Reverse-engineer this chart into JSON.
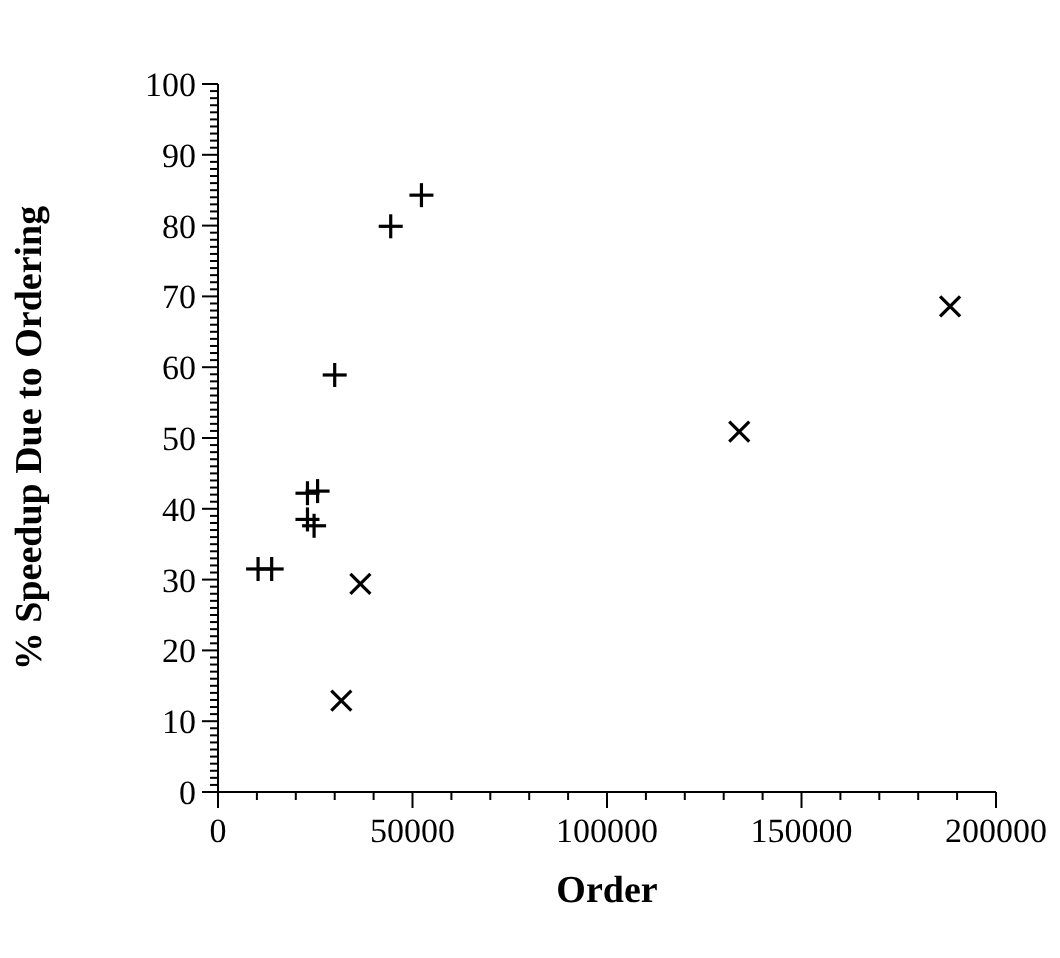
{
  "chart_data": {
    "type": "scatter",
    "xlabel": "Order",
    "ylabel": "% Speedup Due to Ordering",
    "series": [
      {
        "color": "#000000",
        "marker": "plus",
        "x": [
          10300,
          13800,
          23000,
          25600,
          23000,
          24700,
          30000,
          44400,
          52300
        ],
        "values": [
          31.5,
          31.5,
          42.2,
          42.5,
          38.5,
          37.6,
          58.9,
          79.9,
          84.3
        ]
      },
      {
        "color": "#000000",
        "marker": "cross",
        "x": [
          36600,
          31700,
          134000,
          188200
        ],
        "values": [
          29.4,
          12.9,
          50.9,
          68.6
        ]
      }
    ],
    "xlim": [
      0,
      200000
    ],
    "xticks": [
      0,
      {
        "value": 10000,
        "label": null
      },
      {
        "value": 20000,
        "label": null
      },
      {
        "value": 30000,
        "label": null
      },
      {
        "value": 40000,
        "label": null
      },
      50000,
      {
        "value": 60000,
        "label": null
      },
      {
        "value": 70000,
        "label": null
      },
      {
        "value": 80000,
        "label": null
      },
      {
        "value": 90000,
        "label": null
      },
      100000,
      {
        "value": 110000,
        "label": null
      },
      {
        "value": 120000,
        "label": null
      },
      {
        "value": 130000,
        "label": null
      },
      {
        "value": 140000,
        "label": null
      },
      150000,
      {
        "value": 160000,
        "label": null
      },
      {
        "value": 170000,
        "label": null
      },
      {
        "value": 180000,
        "label": null
      },
      {
        "value": 190000,
        "label": null
      },
      200000
    ],
    "ylim": [
      0,
      100
    ],
    "yticks": [
      0,
      {
        "value": 1,
        "label": null
      },
      {
        "value": 2,
        "label": null
      },
      {
        "value": 3,
        "label": null
      },
      {
        "value": 4,
        "label": null
      },
      {
        "value": 5,
        "label": null
      },
      {
        "value": 6,
        "label": null
      },
      {
        "value": 7,
        "label": null
      },
      {
        "value": 8,
        "label": null
      },
      {
        "value": 9,
        "label": null
      },
      10,
      {
        "value": 11,
        "label": null
      },
      {
        "value": 12,
        "label": null
      },
      {
        "value": 13,
        "label": null
      },
      {
        "value": 14,
        "label": null
      },
      {
        "value": 15,
        "label": null
      },
      {
        "value": 16,
        "label": null
      },
      {
        "value": 17,
        "label": null
      },
      {
        "value": 18,
        "label": null
      },
      {
        "value": 19,
        "label": null
      },
      20,
      {
        "value": 21,
        "label": null
      },
      {
        "value": 22,
        "label": null
      },
      {
        "value": 23,
        "label": null
      },
      {
        "value": 24,
        "label": null
      },
      {
        "value": 25,
        "label": null
      },
      {
        "value": 26,
        "label": null
      },
      {
        "value": 27,
        "label": null
      },
      {
        "value": 28,
        "label": null
      },
      {
        "value": 29,
        "label": null
      },
      30,
      {
        "value": 31,
        "label": null
      },
      {
        "value": 32,
        "label": null
      },
      {
        "value": 33,
        "label": null
      },
      {
        "value": 34,
        "label": null
      },
      {
        "value": 35,
        "label": null
      },
      {
        "value": 36,
        "label": null
      },
      {
        "value": 37,
        "label": null
      },
      {
        "value": 38,
        "label": null
      },
      {
        "value": 39,
        "label": null
      },
      40,
      {
        "value": 41,
        "label": null
      },
      {
        "value": 42,
        "label": null
      },
      {
        "value": 43,
        "label": null
      },
      {
        "value": 44,
        "label": null
      },
      {
        "value": 45,
        "label": null
      },
      {
        "value": 46,
        "label": null
      },
      {
        "value": 47,
        "label": null
      },
      {
        "value": 48,
        "label": null
      },
      {
        "value": 49,
        "label": null
      },
      50,
      {
        "value": 51,
        "label": null
      },
      {
        "value": 52,
        "label": null
      },
      {
        "value": 53,
        "label": null
      },
      {
        "value": 54,
        "label": null
      },
      {
        "value": 55,
        "label": null
      },
      {
        "value": 56,
        "label": null
      },
      {
        "value": 57,
        "label": null
      },
      {
        "value": 58,
        "label": null
      },
      {
        "value": 59,
        "label": null
      },
      60,
      {
        "value": 61,
        "label": null
      },
      {
        "value": 62,
        "label": null
      },
      {
        "value": 63,
        "label": null
      },
      {
        "value": 64,
        "label": null
      },
      {
        "value": 65,
        "label": null
      },
      {
        "value": 66,
        "label": null
      },
      {
        "value": 67,
        "label": null
      },
      {
        "value": 68,
        "label": null
      },
      {
        "value": 69,
        "label": null
      },
      70,
      {
        "value": 71,
        "label": null
      },
      {
        "value": 72,
        "label": null
      },
      {
        "value": 73,
        "label": null
      },
      {
        "value": 74,
        "label": null
      },
      {
        "value": 75,
        "label": null
      },
      {
        "value": 76,
        "label": null
      },
      {
        "value": 77,
        "label": null
      },
      {
        "value": 78,
        "label": null
      },
      {
        "value": 79,
        "label": null
      },
      80,
      {
        "value": 81,
        "label": null
      },
      {
        "value": 82,
        "label": null
      },
      {
        "value": 83,
        "label": null
      },
      {
        "value": 84,
        "label": null
      },
      {
        "value": 85,
        "label": null
      },
      {
        "value": 86,
        "label": null
      },
      {
        "value": 87,
        "label": null
      },
      {
        "value": 88,
        "label": null
      },
      {
        "value": 89,
        "label": null
      },
      90,
      {
        "value": 91,
        "label": null
      },
      {
        "value": 92,
        "label": null
      },
      {
        "value": 93,
        "label": null
      },
      {
        "value": 94,
        "label": null
      },
      {
        "value": 95,
        "label": null
      },
      {
        "value": 96,
        "label": null
      },
      {
        "value": 97,
        "label": null
      },
      {
        "value": 98,
        "label": null
      },
      {
        "value": 99,
        "label": null
      },
      100
    ],
    "grid": false
  }
}
